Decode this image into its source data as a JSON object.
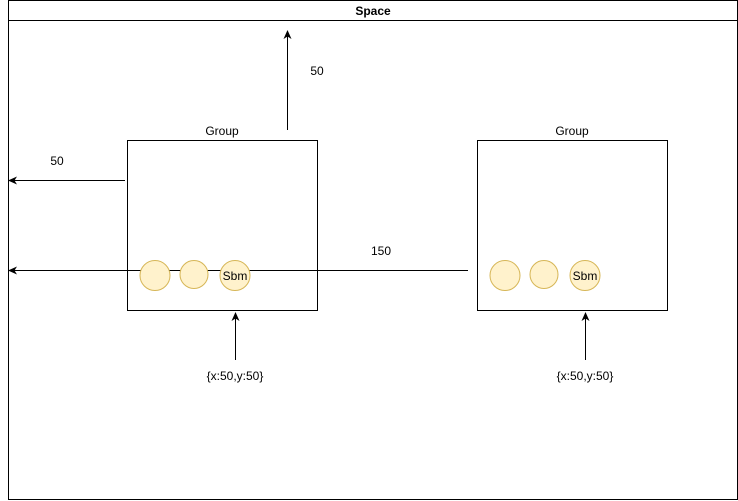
{
  "space": {
    "title": "Space"
  },
  "groups": [
    {
      "label": "Group",
      "coord_label": "{x:50,y:50}",
      "circles": [
        {
          "label": ""
        },
        {
          "label": ""
        },
        {
          "label": "Sbm"
        }
      ]
    },
    {
      "label": "Group",
      "coord_label": "{x:50,y:50}",
      "circles": [
        {
          "label": ""
        },
        {
          "label": ""
        },
        {
          "label": "Sbm"
        }
      ]
    }
  ],
  "measurements": {
    "top_offset": "50",
    "left_offset": "50",
    "second_group_offset": "150"
  },
  "colors": {
    "circle_fill": "#fff2cc",
    "circle_stroke": "#d6b656",
    "line": "#000000",
    "background": "#ffffff"
  }
}
